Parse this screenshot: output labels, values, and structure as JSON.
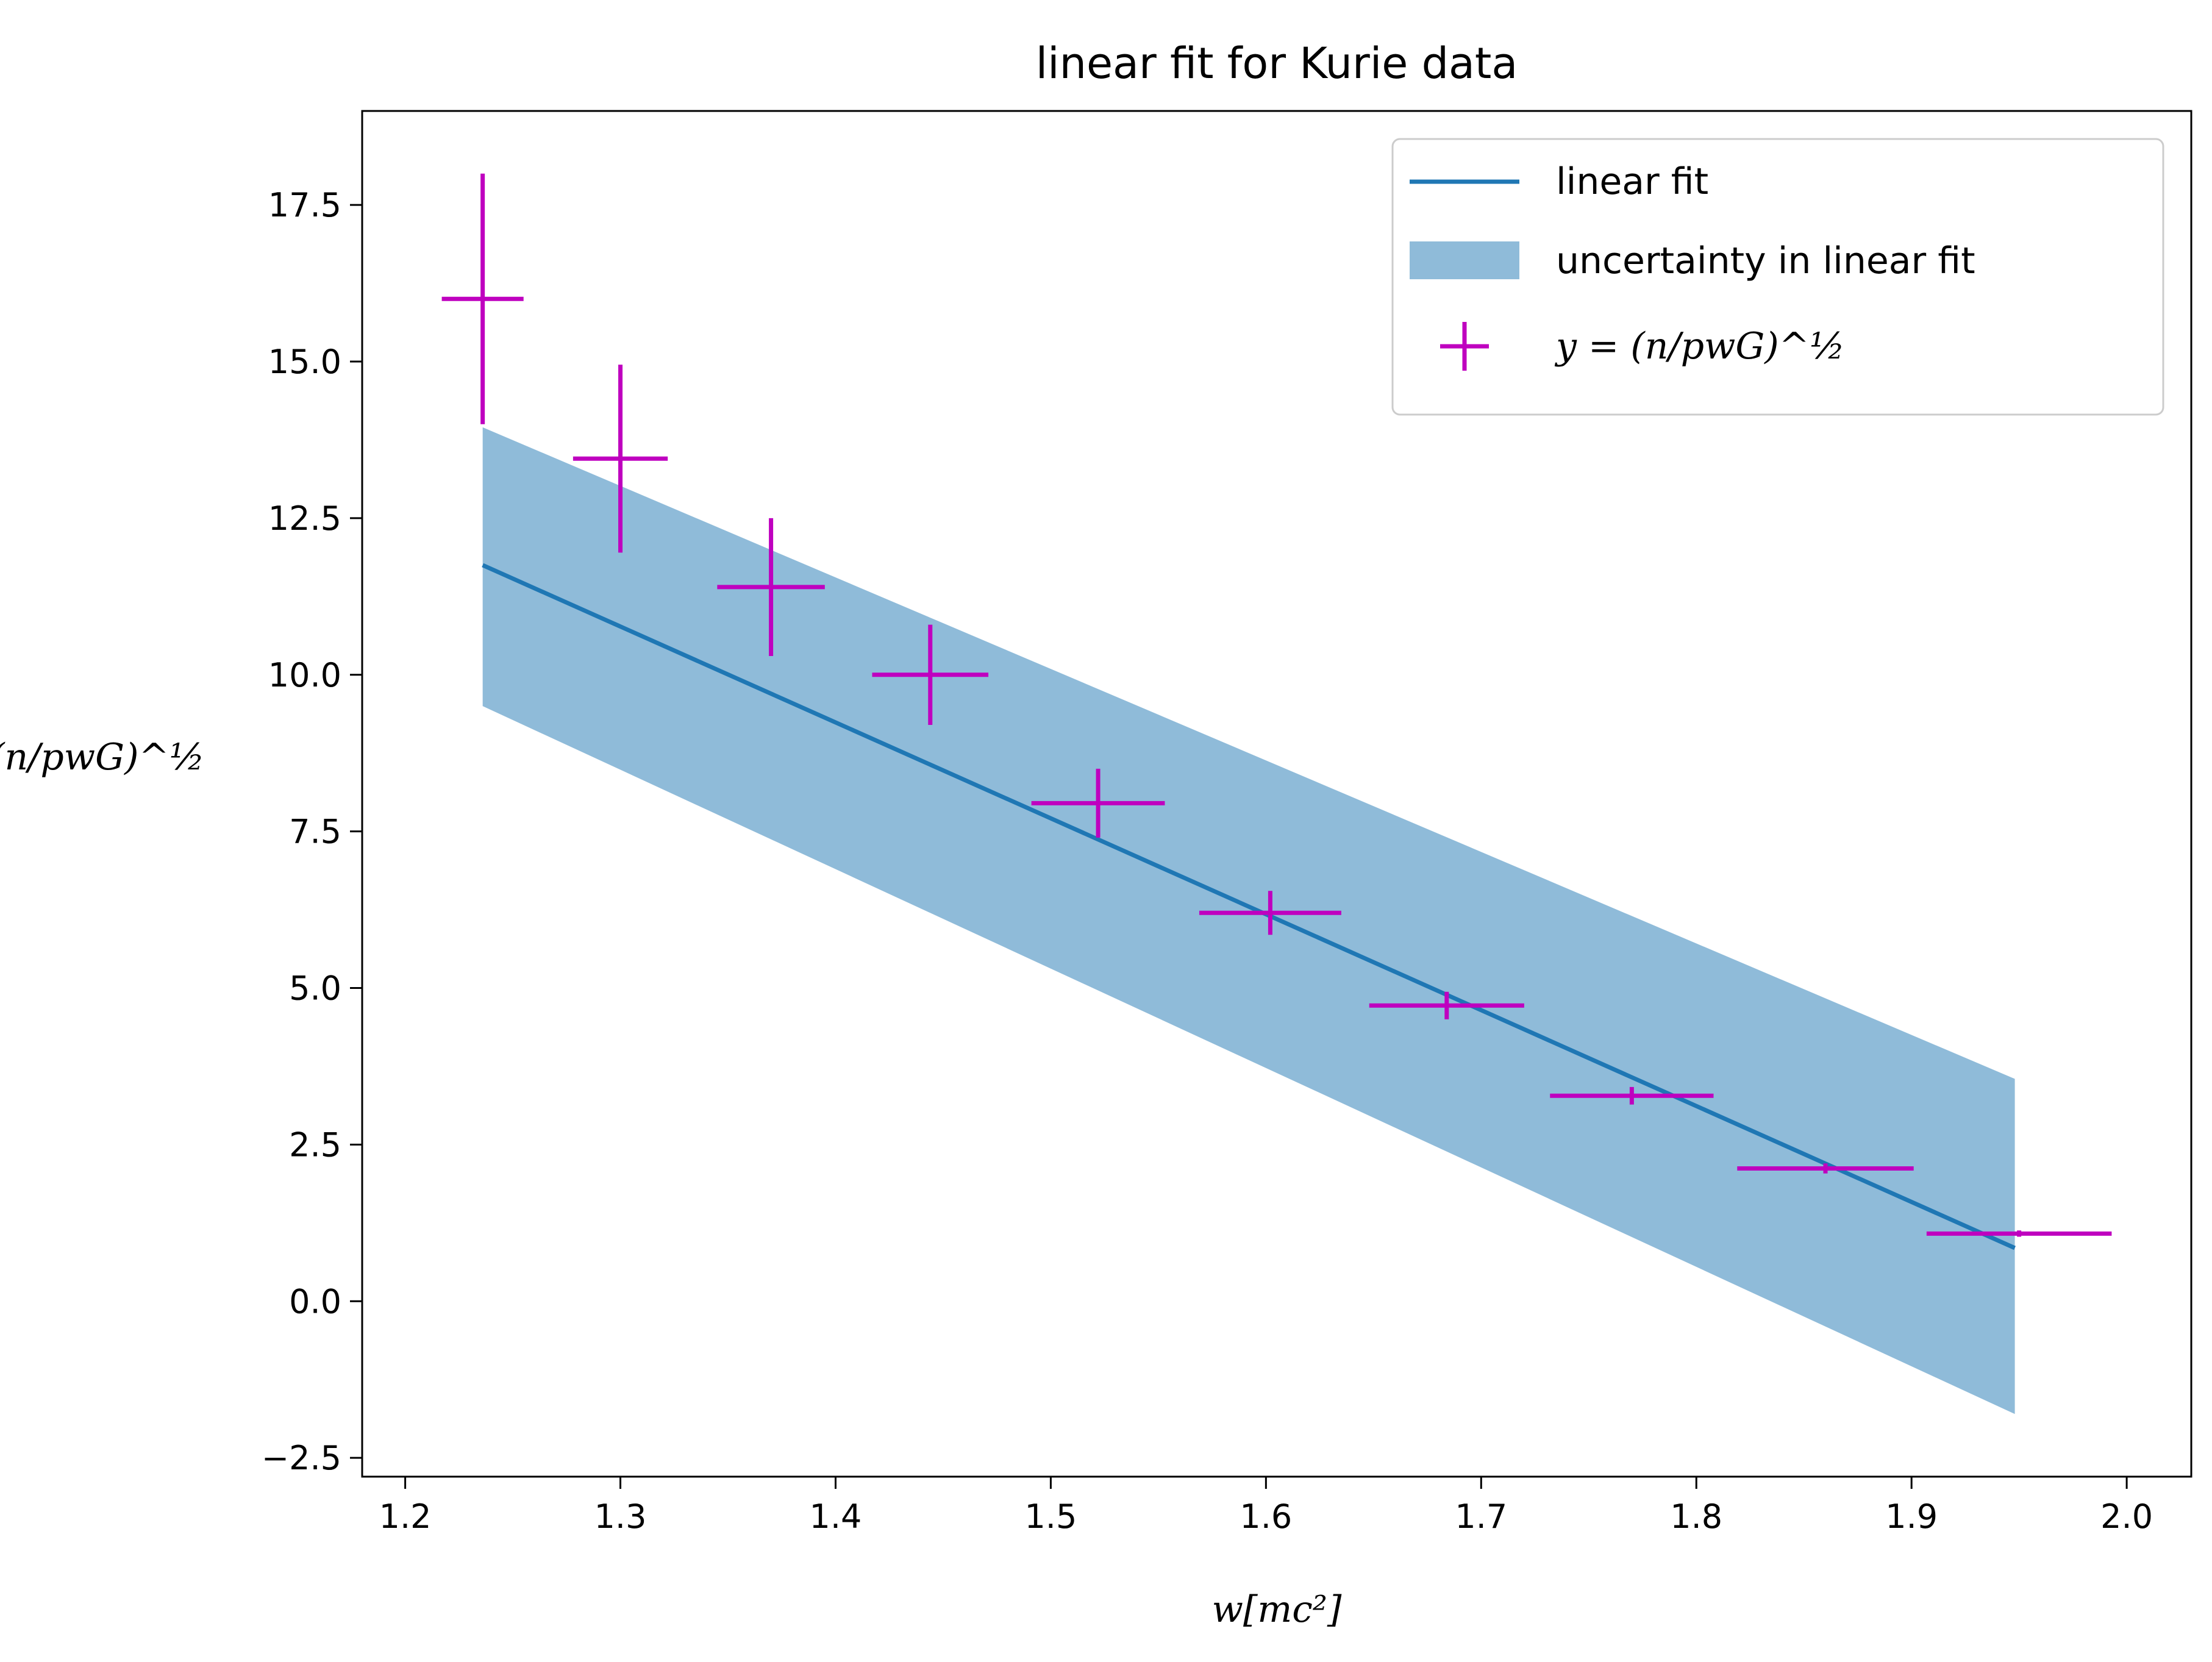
{
  "chart_data": {
    "type": "scatter",
    "title": "linear fit for Kurie data",
    "xlabel": "w[mc²]",
    "ylabel": "(n/pwG)^½",
    "xlim": [
      1.18,
      2.03
    ],
    "ylim": [
      -2.8,
      19.0
    ],
    "xticks": [
      1.2,
      1.3,
      1.4,
      1.5,
      1.6,
      1.7,
      1.8,
      1.9,
      2.0
    ],
    "xtick_labels": [
      "1.2",
      "1.3",
      "1.4",
      "1.5",
      "1.6",
      "1.7",
      "1.8",
      "1.9",
      "2.0"
    ],
    "yticks": [
      -2.5,
      0.0,
      2.5,
      5.0,
      7.5,
      10.0,
      12.5,
      15.0,
      17.5
    ],
    "ytick_labels": [
      "−2.5",
      "0.0",
      "2.5",
      "5.0",
      "7.5",
      "10.0",
      "12.5",
      "15.0",
      "17.5"
    ],
    "grid": false,
    "legend_position": "top-right",
    "series": [
      {
        "name": "linear fit",
        "kind": "line",
        "color": "#1f77b4",
        "x": [
          1.236,
          1.948
        ],
        "y": [
          11.75,
          0.85
        ]
      },
      {
        "name": "uncertainty in linear fit",
        "kind": "band",
        "color": "#8fbbd9",
        "x": [
          1.236,
          1.948
        ],
        "y_upper": [
          13.95,
          3.55
        ],
        "y_lower": [
          9.5,
          -1.8
        ]
      },
      {
        "name": "y = (n/pwG)^½",
        "kind": "errorbar",
        "color": "#bf00bf",
        "points": [
          {
            "x": 1.236,
            "y": 16.0,
            "xerr": 0.019,
            "yerr": 2.0
          },
          {
            "x": 1.3,
            "y": 13.45,
            "xerr": 0.022,
            "yerr": 1.5
          },
          {
            "x": 1.37,
            "y": 11.4,
            "xerr": 0.025,
            "yerr": 1.1
          },
          {
            "x": 1.444,
            "y": 10.0,
            "xerr": 0.027,
            "yerr": 0.8
          },
          {
            "x": 1.522,
            "y": 7.95,
            "xerr": 0.031,
            "yerr": 0.55
          },
          {
            "x": 1.602,
            "y": 6.2,
            "xerr": 0.033,
            "yerr": 0.35
          },
          {
            "x": 1.684,
            "y": 4.72,
            "xerr": 0.036,
            "yerr": 0.22
          },
          {
            "x": 1.77,
            "y": 3.28,
            "xerr": 0.038,
            "yerr": 0.14
          },
          {
            "x": 1.86,
            "y": 2.12,
            "xerr": 0.041,
            "yerr": 0.08
          },
          {
            "x": 1.95,
            "y": 1.08,
            "xerr": 0.043,
            "yerr": 0.05
          }
        ]
      }
    ]
  }
}
